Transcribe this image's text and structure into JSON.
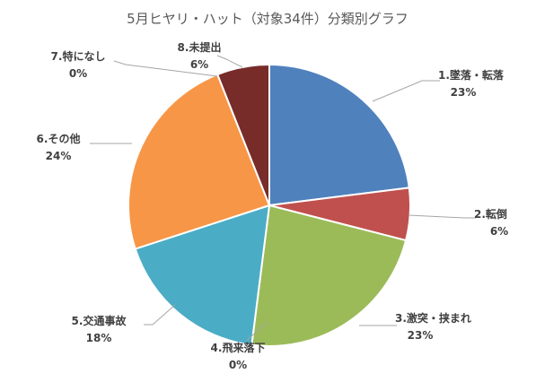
{
  "chart_data": {
    "type": "pie",
    "title": "5月ヒヤリ・ハット（対象34件）分類別グラフ",
    "slices": [
      {
        "name": "1.墜落・転落",
        "value": 23,
        "label": "23%",
        "color": "#4f81bd"
      },
      {
        "name": "2.転倒",
        "value": 6,
        "label": "6%",
        "color": "#c0504d"
      },
      {
        "name": "3.激突・挟まれ",
        "value": 23,
        "label": "23%",
        "color": "#9bbb59"
      },
      {
        "name": "4.飛来落下",
        "value": 0,
        "label": "0%",
        "color": "#8064a2"
      },
      {
        "name": "5.交通事故",
        "value": 18,
        "label": "18%",
        "color": "#4bacc6"
      },
      {
        "name": "6.その他",
        "value": 24,
        "label": "24%",
        "color": "#f79646"
      },
      {
        "name": "7.特になし",
        "value": 0,
        "label": "0%",
        "color": "#2c4d75"
      },
      {
        "name": "8.未提出",
        "value": 6,
        "label": "6%",
        "color": "#772c2a"
      }
    ],
    "legend": "none",
    "start_angle_deg": 0,
    "direction": "clockwise"
  }
}
